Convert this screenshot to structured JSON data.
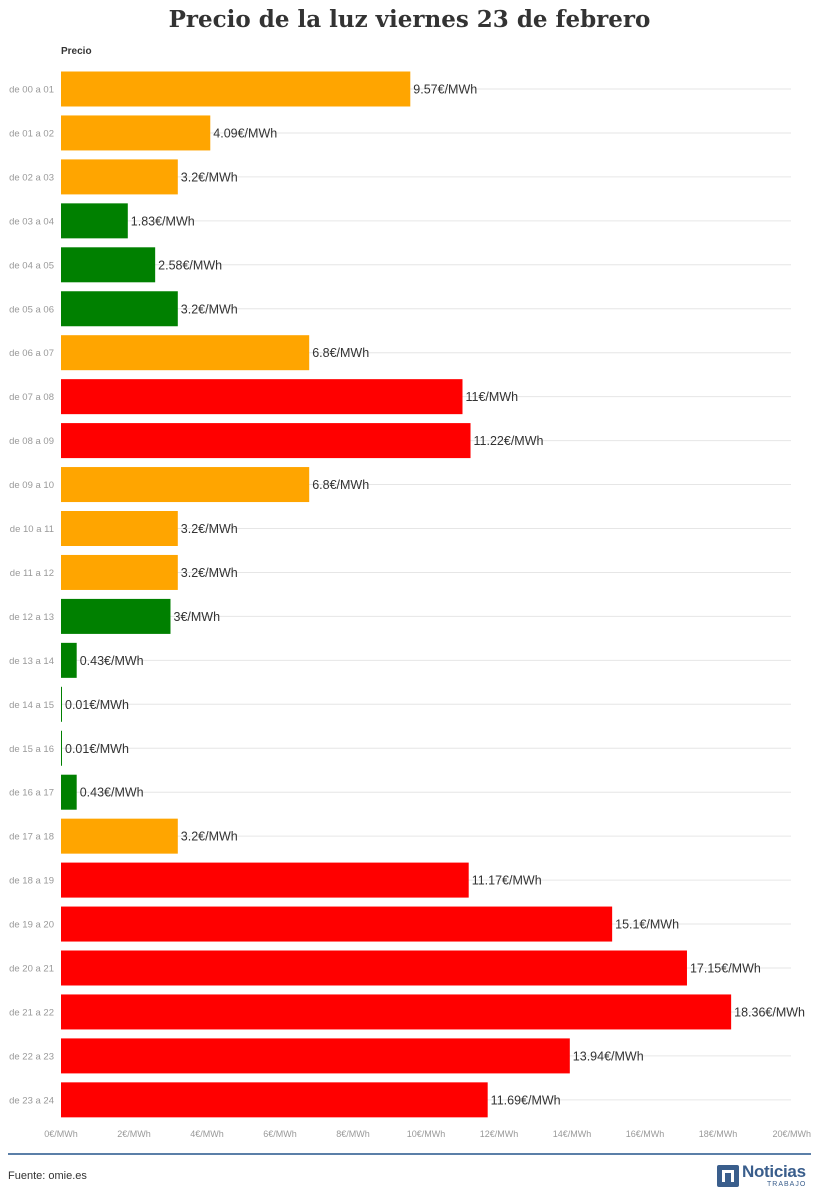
{
  "title": "Precio de la luz viernes 23 de febrero",
  "column_header": "Precio",
  "source": "Fuente: omie.es",
  "logo": {
    "name": "Noticias",
    "sub": "TRABAJO"
  },
  "colors": {
    "low": "#008000",
    "mid": "#FFA500",
    "high": "#FF0000",
    "grid": "#e6e6e6",
    "axis_text": "#999999"
  },
  "chart_data": {
    "type": "bar",
    "orientation": "horizontal",
    "title": "Precio de la luz viernes 23 de febrero",
    "xlabel": "",
    "ylabel": "",
    "xlim": [
      0,
      20
    ],
    "x_ticks": [
      "0€/MWh",
      "2€/MWh",
      "4€/MWh",
      "6€/MWh",
      "8€/MWh",
      "10€/MWh",
      "12€/MWh",
      "14€/MWh",
      "16€/MWh",
      "18€/MWh",
      "20€/MWh"
    ],
    "unit": "€/MWh",
    "categories": [
      "de 00 a 01",
      "de 01 a 02",
      "de 02 a 03",
      "de 03 a 04",
      "de 04 a 05",
      "de 05 a 06",
      "de 06 a 07",
      "de 07 a 08",
      "de 08 a 09",
      "de 09 a 10",
      "de 10 a 11",
      "de 11 a 12",
      "de 12 a 13",
      "de 13 a 14",
      "de 14 a 15",
      "de 15 a 16",
      "de 16 a 17",
      "de 17 a 18",
      "de 18 a 19",
      "de 19 a 20",
      "de 20 a 21",
      "de 21 a 22",
      "de 22 a 23",
      "de 23 a 24"
    ],
    "values": [
      9.57,
      4.09,
      3.2,
      1.83,
      2.58,
      3.2,
      6.8,
      11,
      11.22,
      6.8,
      3.2,
      3.2,
      3,
      0.43,
      0.01,
      0.01,
      0.43,
      3.2,
      11.17,
      15.1,
      17.15,
      18.36,
      13.94,
      11.69
    ],
    "value_labels": [
      "9.57€/MWh",
      "4.09€/MWh",
      "3.2€/MWh",
      "1.83€/MWh",
      "2.58€/MWh",
      "3.2€/MWh",
      "6.8€/MWh",
      "11€/MWh",
      "11.22€/MWh",
      "6.8€/MWh",
      "3.2€/MWh",
      "3.2€/MWh",
      "3€/MWh",
      "0.43€/MWh",
      "0.01€/MWh",
      "0.01€/MWh",
      "0.43€/MWh",
      "3.2€/MWh",
      "11.17€/MWh",
      "15.1€/MWh",
      "17.15€/MWh",
      "18.36€/MWh",
      "13.94€/MWh",
      "11.69€/MWh"
    ],
    "bar_colors": [
      "#FFA500",
      "#FFA500",
      "#FFA500",
      "#008000",
      "#008000",
      "#008000",
      "#FFA500",
      "#FF0000",
      "#FF0000",
      "#FFA500",
      "#FFA500",
      "#FFA500",
      "#008000",
      "#008000",
      "#008000",
      "#008000",
      "#008000",
      "#FFA500",
      "#FF0000",
      "#FF0000",
      "#FF0000",
      "#FF0000",
      "#FF0000",
      "#FF0000"
    ],
    "grid": true,
    "legend": "none"
  }
}
